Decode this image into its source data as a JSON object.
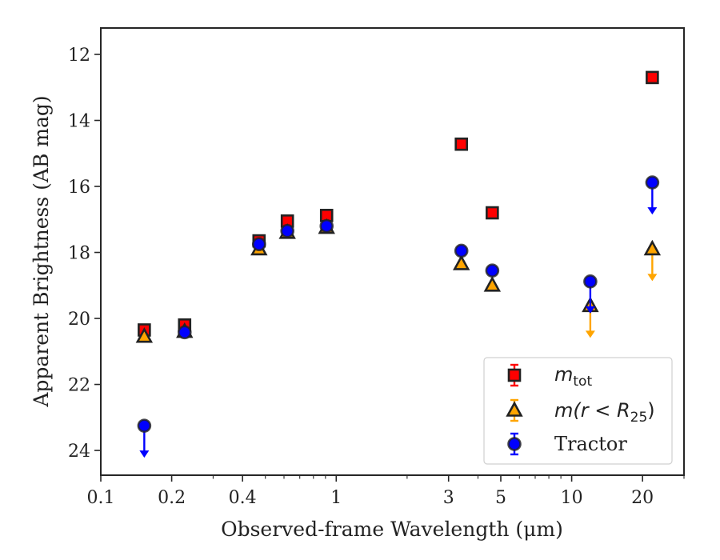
{
  "chart_data": {
    "type": "scatter",
    "title": "",
    "xlabel": "Observed-frame Wavelength (μm)",
    "ylabel": "Apparent Brightness (AB mag)",
    "xscale": "log",
    "xlim": [
      0.1,
      30
    ],
    "ylim": [
      24.75,
      11.2
    ],
    "y_inverted": true,
    "x_ticks": [
      {
        "value": 0.1,
        "label": "0.1"
      },
      {
        "value": 0.2,
        "label": "0.2"
      },
      {
        "value": 0.4,
        "label": "0.4"
      },
      {
        "value": 1,
        "label": "1"
      },
      {
        "value": 3,
        "label": "3"
      },
      {
        "value": 5,
        "label": "5"
      },
      {
        "value": 10,
        "label": "10"
      },
      {
        "value": 20,
        "label": "20"
      }
    ],
    "y_ticks": [
      {
        "value": 12,
        "label": "12"
      },
      {
        "value": 14,
        "label": "14"
      },
      {
        "value": 16,
        "label": "16"
      },
      {
        "value": 18,
        "label": "18"
      },
      {
        "value": 20,
        "label": "20"
      },
      {
        "value": 22,
        "label": "22"
      },
      {
        "value": 24,
        "label": "24"
      }
    ],
    "grid": false,
    "legend_position": "bottom-right",
    "legend": {
      "mtot_main": "m",
      "mtot_sub": "tot",
      "mr_prefix": "m(r < R",
      "mr_sub": "25",
      "mr_suffix": ")",
      "tractor": "Tractor"
    },
    "series": [
      {
        "key": "mtot",
        "marker": "square",
        "color": "#ff0000",
        "points": [
          {
            "x": 0.153,
            "y": 20.35
          },
          {
            "x": 0.227,
            "y": 20.2
          },
          {
            "x": 0.47,
            "y": 17.65
          },
          {
            "x": 0.62,
            "y": 17.05
          },
          {
            "x": 0.91,
            "y": 16.88
          },
          {
            "x": 3.4,
            "y": 14.72
          },
          {
            "x": 4.6,
            "y": 16.8
          },
          {
            "x": 22,
            "y": 12.7
          }
        ]
      },
      {
        "key": "mr25",
        "marker": "triangle",
        "color": "#ffa500",
        "points": [
          {
            "x": 0.153,
            "y": 20.55
          },
          {
            "x": 0.227,
            "y": 20.4
          },
          {
            "x": 0.47,
            "y": 17.9
          },
          {
            "x": 0.62,
            "y": 17.4
          },
          {
            "x": 0.91,
            "y": 17.25
          },
          {
            "x": 3.4,
            "y": 18.35
          },
          {
            "x": 4.6,
            "y": 19.0
          },
          {
            "x": 12,
            "y": 19.62,
            "upper_limit": true
          },
          {
            "x": 22,
            "y": 17.9,
            "upper_limit": true
          }
        ]
      },
      {
        "key": "tractor",
        "marker": "circle",
        "color": "#0000ff",
        "points": [
          {
            "x": 0.153,
            "y": 23.25,
            "upper_limit": true
          },
          {
            "x": 0.227,
            "y": 20.42
          },
          {
            "x": 0.47,
            "y": 17.75
          },
          {
            "x": 0.62,
            "y": 17.35
          },
          {
            "x": 0.91,
            "y": 17.2
          },
          {
            "x": 3.4,
            "y": 17.95
          },
          {
            "x": 4.6,
            "y": 18.55
          },
          {
            "x": 12,
            "y": 18.88,
            "upper_limit": true
          },
          {
            "x": 22,
            "y": 15.88,
            "upper_limit": true
          }
        ]
      }
    ]
  }
}
